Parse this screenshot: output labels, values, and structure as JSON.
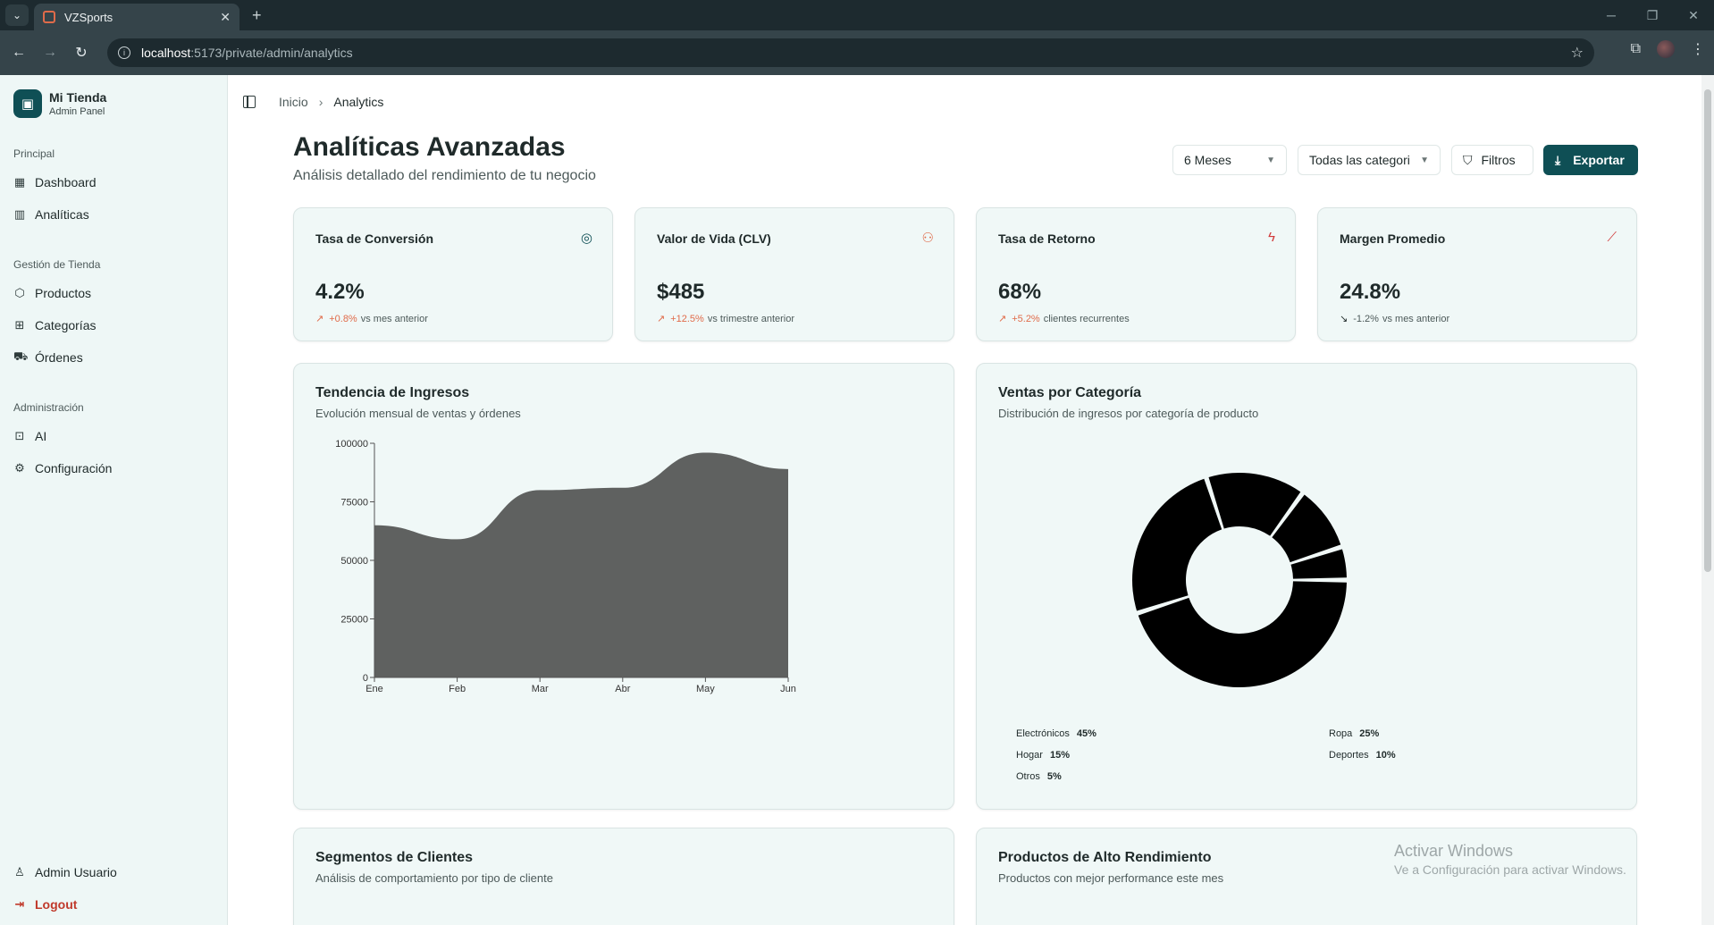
{
  "browser": {
    "tab_title": "VZSports",
    "url_host": "localhost",
    "url_path": ":5173/private/admin/analytics"
  },
  "sidebar": {
    "brand_name": "Mi Tienda",
    "brand_sub": "Admin Panel",
    "sections": [
      {
        "label": "Principal",
        "items": [
          "Dashboard",
          "Analíticas"
        ]
      },
      {
        "label": "Gestión de Tienda",
        "items": [
          "Productos",
          "Categorías",
          "Órdenes"
        ]
      },
      {
        "label": "Administración",
        "items": [
          "AI",
          "Configuración"
        ]
      }
    ],
    "user": "Admin Usuario",
    "logout": "Logout"
  },
  "breadcrumb": {
    "home": "Inicio",
    "current": "Analytics"
  },
  "page": {
    "title": "Analíticas Avanzadas",
    "subtitle": "Análisis detallado del rendimiento de tu negocio"
  },
  "controls": {
    "period": "6 Meses",
    "category": "Todas las categori",
    "filters": "Filtros",
    "export": "Exportar"
  },
  "kpis": [
    {
      "title": "Tasa de Conversión",
      "value": "4.2%",
      "delta": "+0.8%",
      "note": "vs mes anterior",
      "icon": "target-icon",
      "trend": "up",
      "icon_color": "#0f4f55"
    },
    {
      "title": "Valor de Vida (CLV)",
      "value": "$485",
      "delta": "+12.5%",
      "note": "vs trimestre anterior",
      "icon": "users-icon",
      "trend": "up",
      "icon_color": "#e06b4a"
    },
    {
      "title": "Tasa de Retorno",
      "value": "68%",
      "delta": "+5.2%",
      "note": "clientes recurrentes",
      "icon": "zap-icon",
      "trend": "up",
      "icon_color": "#d13a3a"
    },
    {
      "title": "Margen Promedio",
      "value": "24.8%",
      "delta": "-1.2%",
      "note": "vs mes anterior",
      "icon": "trending-up-icon",
      "trend": "down",
      "icon_color": "#d13a3a"
    }
  ],
  "revenue_card": {
    "title": "Tendencia de Ingresos",
    "subtitle": "Evolución mensual de ventas y órdenes"
  },
  "category_card": {
    "title": "Ventas por Categoría",
    "subtitle": "Distribución de ingresos por categoría de producto"
  },
  "segments_card": {
    "title": "Segmentos de Clientes",
    "subtitle": "Análisis de comportamiento por tipo de cliente"
  },
  "products_card": {
    "title": "Productos de Alto Rendimiento",
    "subtitle": "Productos con mejor performance este mes"
  },
  "watermark": {
    "line1": "Activar Windows",
    "line2": "Ve a Configuración para activar Windows."
  },
  "colors": {
    "accent": "#0f4f55",
    "positive": "#e06b4a",
    "card_bg": "#f0f8f7",
    "sidebar_bg": "#eef7f6"
  },
  "chart_data": [
    {
      "type": "area",
      "x": [
        "Ene",
        "Feb",
        "Mar",
        "Abr",
        "May",
        "Jun"
      ],
      "series": [
        {
          "values": [
            65000,
            59000,
            80000,
            81000,
            96000,
            89000
          ]
        }
      ],
      "yticks": [
        0,
        25000,
        50000,
        75000,
        100000
      ],
      "ylim": [
        0,
        100000
      ],
      "grid": false
    },
    {
      "type": "pie",
      "categories": [
        "Electrónicos",
        "Ropa",
        "Hogar",
        "Deportes",
        "Otros"
      ],
      "values": [
        45,
        25,
        15,
        10,
        5
      ],
      "value_labels": [
        "45%",
        "25%",
        "15%",
        "10%",
        "5%"
      ],
      "donut": true,
      "legend": "bottom"
    }
  ]
}
